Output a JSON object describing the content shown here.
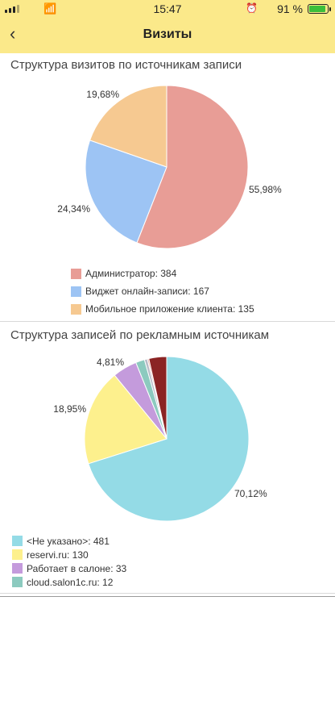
{
  "status_bar": {
    "time": "15:47",
    "battery": "91 %"
  },
  "header": {
    "title": "Визиты",
    "back_icon": "chevron-left-icon"
  },
  "colors": {
    "header_bg": "#fbe98a",
    "admin": "#e89d96",
    "widget": "#9dc4f4",
    "mobile": "#f6c991",
    "not_specified": "#94dbe6",
    "reservi": "#fdf08d",
    "works_in_salon": "#c49bdc",
    "cloud": "#8ccabf"
  },
  "chart_data": [
    {
      "type": "pie",
      "title": "Структура визитов по источникам записи",
      "slices": [
        {
          "label": "Администратор",
          "value": 384,
          "percent_label": "55,98%",
          "color": "#e89d96"
        },
        {
          "label": "Виджет онлайн-записи",
          "value": 167,
          "percent_label": "24,34%",
          "color": "#9dc4f4"
        },
        {
          "label": "Мобильное приложение клиента",
          "value": 135,
          "percent_label": "19,68%",
          "color": "#f6c991"
        }
      ],
      "legend": [
        "Администратор: 384",
        "Виджет онлайн-записи: 167",
        "Мобильное приложение клиента: 135"
      ]
    },
    {
      "type": "pie",
      "title": "Структура записей по рекламным источникам",
      "slices": [
        {
          "label": "<Не указано>",
          "value": 481,
          "percent_label": "70,12%",
          "color": "#94dbe6"
        },
        {
          "label": "reservi.ru",
          "value": 130,
          "percent_label": "18,95%",
          "color": "#fdf08d"
        },
        {
          "label": "Работает в салоне",
          "value": 33,
          "percent_label": "4,81%",
          "color": "#c49bdc"
        },
        {
          "label": "cloud.salon1c.ru",
          "value": 12,
          "percent_label": "",
          "color": "#8ccabf"
        },
        {
          "value": 4,
          "percent_label": "",
          "color": "#b8bcc8"
        },
        {
          "value": 2,
          "percent_label": "",
          "color": "#e9a69b"
        },
        {
          "value": 24,
          "percent_label": "",
          "color": "#8b2424"
        }
      ],
      "legend": [
        "<Не указано>: 481",
        "reservi.ru: 130",
        "Работает в салоне: 33",
        "cloud.salon1c.ru: 12"
      ]
    }
  ]
}
